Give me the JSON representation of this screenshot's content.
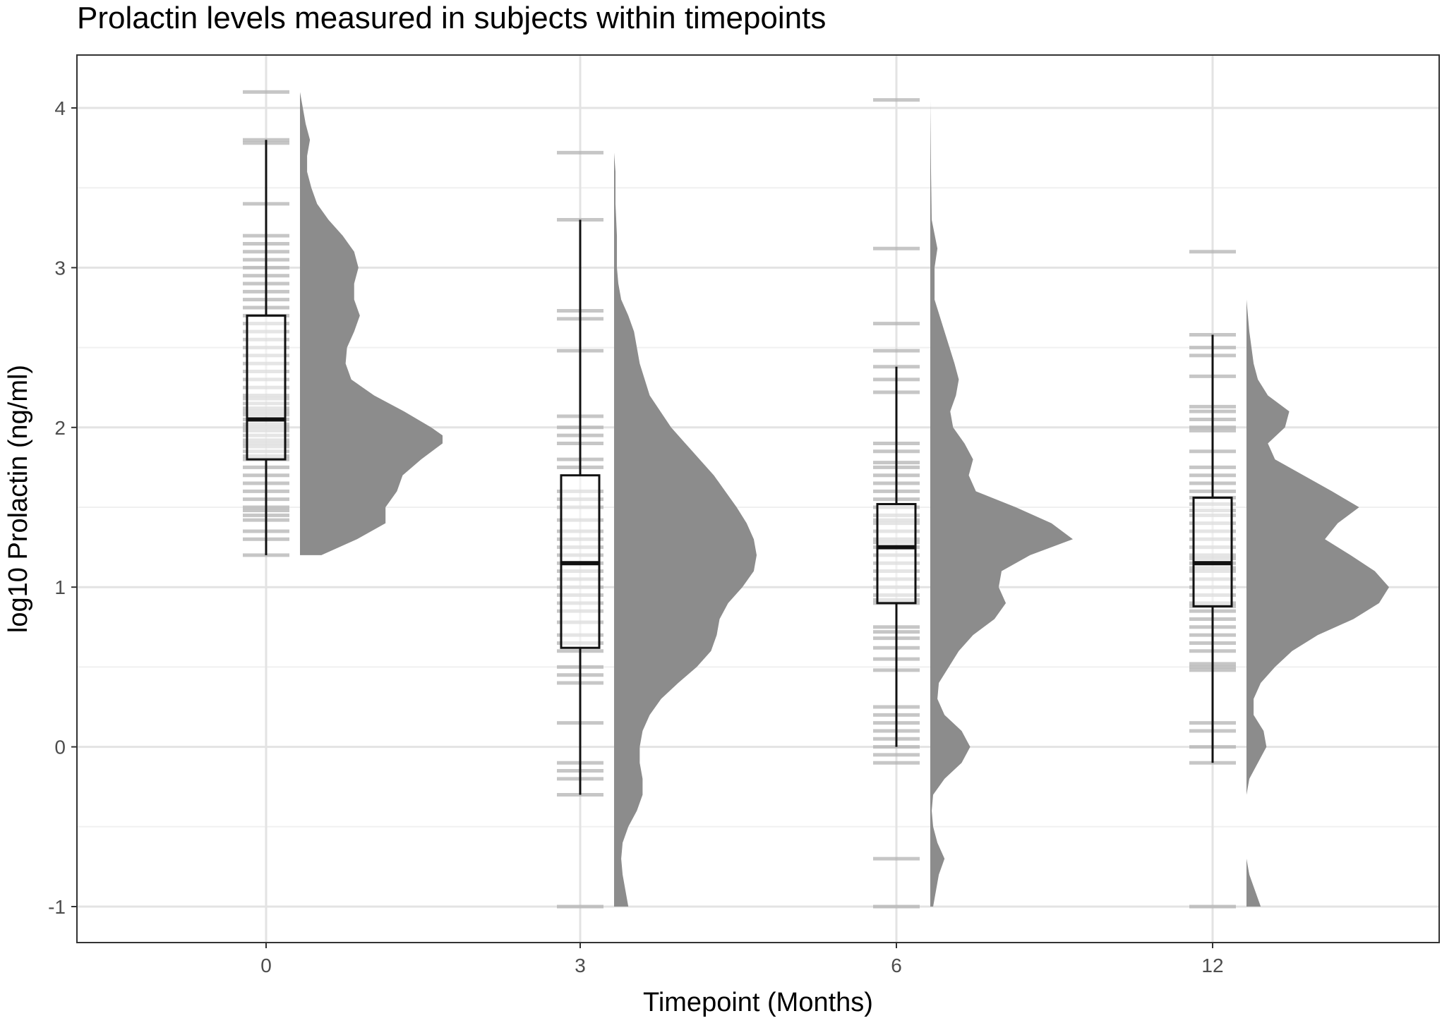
{
  "chart_data": {
    "type": "raincloud",
    "title": "Prolactin levels measured in subjects within timepoints",
    "xlabel": "Timepoint (Months)",
    "ylabel": "log10 Prolactin (ng/ml)",
    "ylim": [
      -1.15,
      4.35
    ],
    "y_ticks": [
      -1,
      0,
      1,
      2,
      3,
      4
    ],
    "categories": [
      "0",
      "3",
      "6",
      "12"
    ],
    "grid": true,
    "colors": {
      "density_fill": "#8c8c8c",
      "rug": "#b3b3b3",
      "box_stroke": "#111111",
      "grid": "#e3e3e3",
      "panel_border": "#333333"
    },
    "boxplots": [
      {
        "category": "0",
        "whisker_low": 1.2,
        "q1": 1.8,
        "median": 2.05,
        "q3": 2.7,
        "whisker_high": 3.8
      },
      {
        "category": "3",
        "whisker_low": -0.3,
        "q1": 0.62,
        "median": 1.15,
        "q3": 1.7,
        "whisker_high": 3.3
      },
      {
        "category": "6",
        "whisker_low": 0.0,
        "q1": 0.9,
        "median": 1.25,
        "q3": 1.52,
        "whisker_high": 2.38
      },
      {
        "category": "12",
        "whisker_low": -0.1,
        "q1": 0.88,
        "median": 1.15,
        "q3": 1.56,
        "whisker_high": 2.58
      }
    ],
    "observations": [
      {
        "category": "0",
        "values": [
          4.1,
          3.8,
          3.78,
          3.4,
          3.2,
          3.15,
          3.1,
          3.05,
          3.0,
          2.95,
          2.9,
          2.85,
          2.8,
          2.75,
          2.7,
          2.65,
          2.6,
          2.55,
          2.5,
          2.45,
          2.4,
          2.35,
          2.3,
          2.25,
          2.2,
          2.18,
          2.15,
          2.12,
          2.1,
          2.08,
          2.05,
          2.02,
          2.0,
          1.98,
          1.95,
          1.92,
          1.9,
          1.88,
          1.85,
          1.82,
          1.8,
          1.75,
          1.7,
          1.65,
          1.6,
          1.55,
          1.5,
          1.48,
          1.45,
          1.42,
          1.35,
          1.3,
          1.2
        ]
      },
      {
        "category": "3",
        "values": [
          3.72,
          3.3,
          2.73,
          2.68,
          2.48,
          2.07,
          2.0,
          1.95,
          1.9,
          1.8,
          1.75,
          1.6,
          1.55,
          1.5,
          1.42,
          1.35,
          1.3,
          1.25,
          1.2,
          1.15,
          1.1,
          1.05,
          1.0,
          0.95,
          0.9,
          0.85,
          0.78,
          0.7,
          0.65,
          0.6,
          0.5,
          0.45,
          0.4,
          0.15,
          -0.1,
          -0.15,
          -0.2,
          -0.3,
          -1.0
        ]
      },
      {
        "category": "6",
        "values": [
          4.05,
          3.12,
          2.65,
          2.48,
          2.38,
          2.3,
          2.22,
          1.9,
          1.85,
          1.78,
          1.75,
          1.7,
          1.65,
          1.6,
          1.55,
          1.5,
          1.45,
          1.42,
          1.4,
          1.35,
          1.3,
          1.28,
          1.25,
          1.2,
          1.15,
          1.1,
          1.05,
          1.0,
          0.95,
          0.92,
          0.9,
          0.75,
          0.72,
          0.68,
          0.62,
          0.55,
          0.48,
          0.25,
          0.2,
          0.15,
          0.1,
          0.05,
          0.0,
          -0.05,
          -0.1,
          -0.7,
          -1.0
        ]
      },
      {
        "category": "12",
        "values": [
          3.1,
          2.58,
          2.5,
          2.45,
          2.32,
          2.13,
          2.1,
          2.05,
          2.0,
          1.98,
          1.85,
          1.75,
          1.7,
          1.65,
          1.6,
          1.56,
          1.52,
          1.48,
          1.45,
          1.4,
          1.35,
          1.3,
          1.25,
          1.2,
          1.18,
          1.15,
          1.12,
          1.1,
          1.05,
          1.0,
          0.95,
          0.9,
          0.88,
          0.85,
          0.8,
          0.75,
          0.7,
          0.65,
          0.6,
          0.52,
          0.5,
          0.48,
          0.15,
          0.1,
          0.0,
          -0.1,
          -1.0
        ]
      }
    ],
    "densities": [
      {
        "category": "0",
        "y": [
          1.2,
          1.3,
          1.4,
          1.5,
          1.6,
          1.7,
          1.8,
          1.9,
          1.95,
          2.0,
          2.1,
          2.2,
          2.3,
          2.4,
          2.5,
          2.6,
          2.7,
          2.8,
          2.9,
          3.0,
          3.1,
          3.2,
          3.3,
          3.4,
          3.5,
          3.6,
          3.7,
          3.8,
          3.9,
          4.0,
          4.1
        ],
        "density": [
          0.15,
          0.4,
          0.6,
          0.6,
          0.68,
          0.72,
          0.85,
          1.0,
          1.0,
          0.92,
          0.73,
          0.52,
          0.36,
          0.32,
          0.33,
          0.38,
          0.42,
          0.38,
          0.38,
          0.41,
          0.38,
          0.3,
          0.2,
          0.12,
          0.08,
          0.05,
          0.05,
          0.07,
          0.04,
          0.02,
          0.0
        ]
      },
      {
        "category": "3",
        "y": [
          -1.0,
          -0.9,
          -0.8,
          -0.7,
          -0.6,
          -0.5,
          -0.4,
          -0.3,
          -0.2,
          -0.1,
          0.0,
          0.1,
          0.2,
          0.3,
          0.4,
          0.5,
          0.6,
          0.7,
          0.8,
          0.9,
          1.0,
          1.1,
          1.2,
          1.3,
          1.4,
          1.5,
          1.6,
          1.7,
          1.8,
          1.9,
          2.0,
          2.2,
          2.4,
          2.5,
          2.6,
          2.7,
          2.8,
          2.9,
          3.0,
          3.2,
          3.4,
          3.6,
          3.72
        ],
        "density": [
          0.1,
          0.08,
          0.06,
          0.05,
          0.06,
          0.1,
          0.16,
          0.2,
          0.2,
          0.18,
          0.18,
          0.2,
          0.25,
          0.33,
          0.45,
          0.58,
          0.68,
          0.72,
          0.74,
          0.8,
          0.9,
          0.98,
          1.0,
          0.98,
          0.93,
          0.86,
          0.78,
          0.7,
          0.6,
          0.5,
          0.4,
          0.25,
          0.18,
          0.16,
          0.14,
          0.1,
          0.05,
          0.03,
          0.02,
          0.02,
          0.01,
          0.01,
          0.0
        ]
      },
      {
        "category": "6",
        "y": [
          -1.0,
          -0.9,
          -0.8,
          -0.7,
          -0.6,
          -0.5,
          -0.4,
          -0.3,
          -0.2,
          -0.1,
          0.0,
          0.1,
          0.2,
          0.3,
          0.4,
          0.5,
          0.6,
          0.7,
          0.8,
          0.9,
          1.0,
          1.1,
          1.2,
          1.3,
          1.4,
          1.5,
          1.6,
          1.7,
          1.8,
          1.9,
          2.0,
          2.1,
          2.2,
          2.3,
          2.4,
          2.6,
          2.8,
          3.0,
          3.12,
          3.3,
          3.6,
          4.05
        ],
        "density": [
          0.02,
          0.04,
          0.06,
          0.1,
          0.05,
          0.02,
          0.01,
          0.02,
          0.1,
          0.22,
          0.28,
          0.22,
          0.1,
          0.05,
          0.06,
          0.13,
          0.2,
          0.3,
          0.45,
          0.53,
          0.48,
          0.5,
          0.7,
          1.0,
          0.85,
          0.6,
          0.32,
          0.27,
          0.3,
          0.24,
          0.16,
          0.14,
          0.18,
          0.2,
          0.17,
          0.1,
          0.03,
          0.03,
          0.05,
          0.01,
          0.005,
          0.0
        ]
      },
      {
        "category": "12",
        "y": [
          -1.0,
          -0.9,
          -0.8,
          -0.7,
          -0.6,
          -0.5,
          -0.4,
          -0.3,
          -0.2,
          -0.1,
          0.0,
          0.1,
          0.2,
          0.3,
          0.4,
          0.5,
          0.6,
          0.7,
          0.8,
          0.9,
          1.0,
          1.1,
          1.2,
          1.3,
          1.4,
          1.5,
          1.6,
          1.7,
          1.8,
          1.9,
          2.0,
          2.1,
          2.2,
          2.3,
          2.4,
          2.6,
          2.8,
          3.0,
          3.1
        ],
        "density": [
          0.1,
          0.06,
          0.02,
          0.0,
          0.0,
          0.0,
          0.0,
          0.0,
          0.02,
          0.08,
          0.14,
          0.12,
          0.05,
          0.05,
          0.1,
          0.2,
          0.32,
          0.5,
          0.75,
          0.93,
          1.0,
          0.9,
          0.73,
          0.55,
          0.64,
          0.79,
          0.6,
          0.4,
          0.2,
          0.15,
          0.27,
          0.3,
          0.15,
          0.08,
          0.05,
          0.02,
          0.0,
          0.0,
          0.0
        ]
      }
    ]
  }
}
